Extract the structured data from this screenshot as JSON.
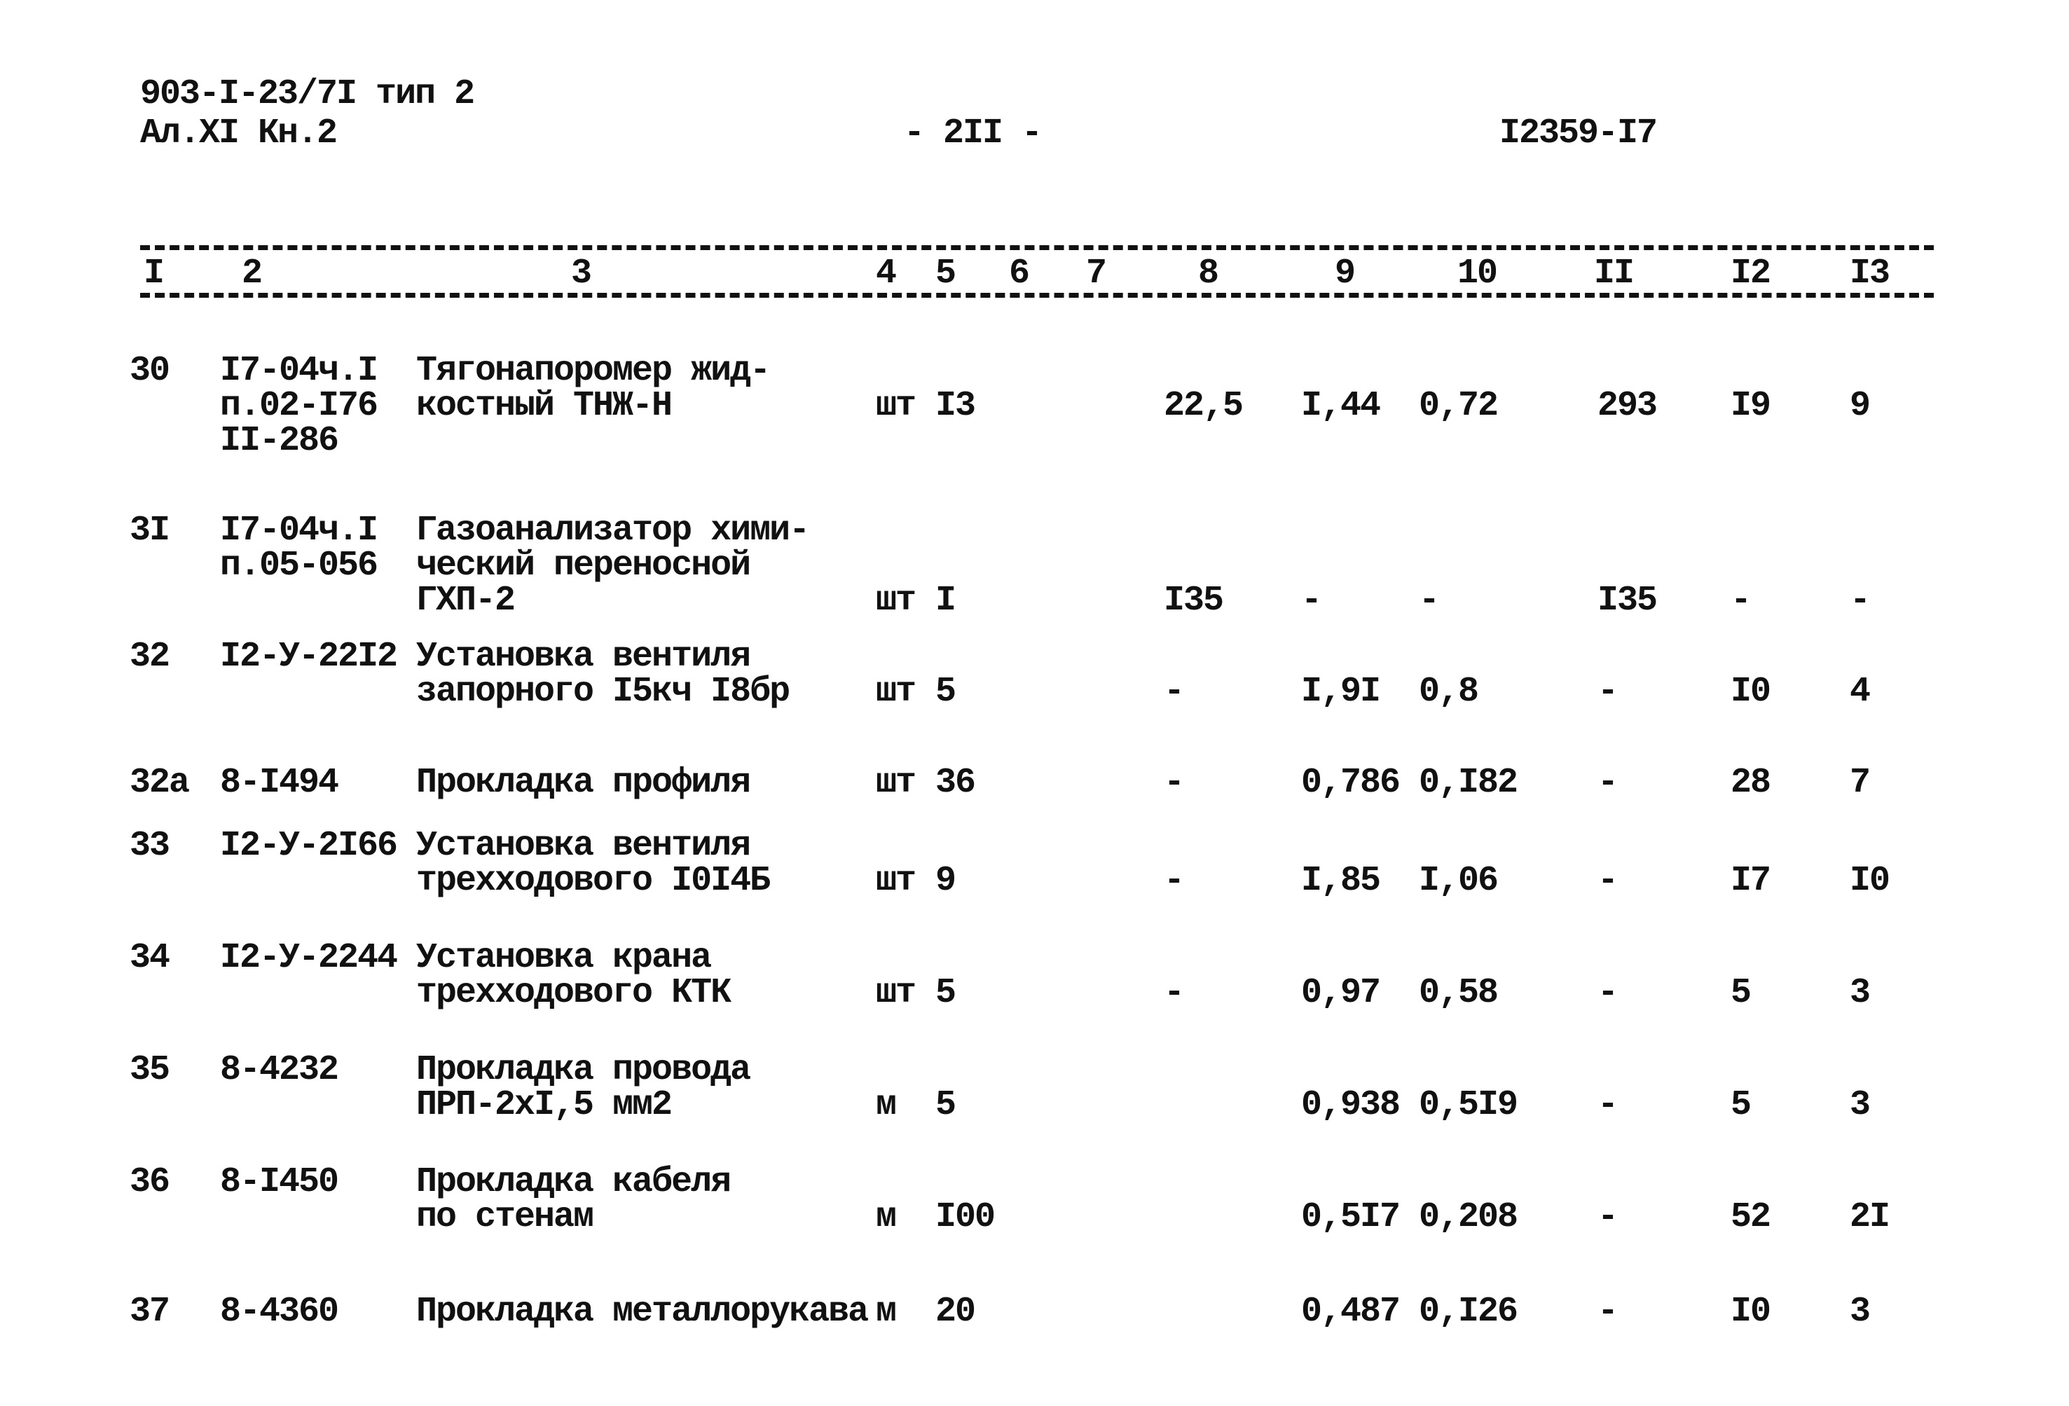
{
  "header": {
    "doc_code": "903-I-23/7I тип 2",
    "album": "Ал.XI Кн.2",
    "page_number": "- 2II -",
    "sheet_code": "I2359-I7"
  },
  "columns": [
    "I",
    "2",
    "3",
    "4",
    "5",
    "6",
    "7",
    "8",
    "9",
    "10",
    "II",
    "I2",
    "I3"
  ],
  "rows": [
    {
      "n": "30",
      "code": [
        "I7-04ч.I",
        "п.02-I76",
        "II-286"
      ],
      "name": [
        "Тягонапоромер жид-",
        "костный ТНЖ-Н"
      ],
      "unit": "шт",
      "qty": "I3",
      "c8": "22,5",
      "c9": "I,44",
      "c10": "0,72",
      "c11": "293",
      "c12": "I9",
      "c13": "9"
    },
    {
      "n": "3I",
      "code": [
        "I7-04ч.I",
        "п.05-056"
      ],
      "name": [
        "Газоанализатор хими-",
        "ческий переносной",
        "ГХП-2"
      ],
      "unit": "шт",
      "qty": "I",
      "c8": "I35",
      "c9": "-",
      "c10": "-",
      "c11": "I35",
      "c12": "-",
      "c13": "-"
    },
    {
      "n": "32",
      "code": [
        "I2-У-22I2"
      ],
      "name": [
        "Установка вентиля",
        "запорного I5кч I8бр"
      ],
      "unit": "шт",
      "qty": "5",
      "c8": "-",
      "c9": "I,9I",
      "c10": "0,8",
      "c11": "-",
      "c12": "I0",
      "c13": "4"
    },
    {
      "n": "32а",
      "code": [
        "8-I494"
      ],
      "name": [
        "Прокладка профиля"
      ],
      "unit": "шт",
      "qty": "36",
      "c8": "-",
      "c9": "0,786",
      "c10": "0,I82",
      "c11": "-",
      "c12": "28",
      "c13": "7"
    },
    {
      "n": "33",
      "code": [
        "I2-У-2I66"
      ],
      "name": [
        "Установка вентиля",
        "трехходового I0I4Б"
      ],
      "unit": "шт",
      "qty": "9",
      "c8": "-",
      "c9": "I,85",
      "c10": "I,06",
      "c11": "-",
      "c12": "I7",
      "c13": "I0"
    },
    {
      "n": "34",
      "code": [
        "I2-У-2244"
      ],
      "name": [
        "Установка крана",
        "трехходового КТК"
      ],
      "unit": "шт",
      "qty": "5",
      "c8": "-",
      "c9": "0,97",
      "c10": "0,58",
      "c11": "-",
      "c12": "5",
      "c13": "3"
    },
    {
      "n": "35",
      "code": [
        "8-4232"
      ],
      "name": [
        "Прокладка провода",
        "ПРП-2хI,5 мм2"
      ],
      "unit": "м",
      "qty": "5",
      "c8": "",
      "c9": "0,938",
      "c10": "0,5I9",
      "c11": "-",
      "c12": "5",
      "c13": "3"
    },
    {
      "n": "36",
      "code": [
        "8-I450"
      ],
      "name": [
        "Прокладка кабеля",
        "по стенам"
      ],
      "unit": "м",
      "qty": "I00",
      "c8": "",
      "c9": "0,5I7",
      "c10": "0,208",
      "c11": "-",
      "c12": "52",
      "c13": "2I"
    },
    {
      "n": "37",
      "code": [
        "8-4360"
      ],
      "name": [
        "Прокладка металлорукава"
      ],
      "unit": "м",
      "qty": "20",
      "c8": "",
      "c9": "0,487",
      "c10": "0,I26",
      "c11": "-",
      "c12": "I0",
      "c13": "3"
    }
  ]
}
